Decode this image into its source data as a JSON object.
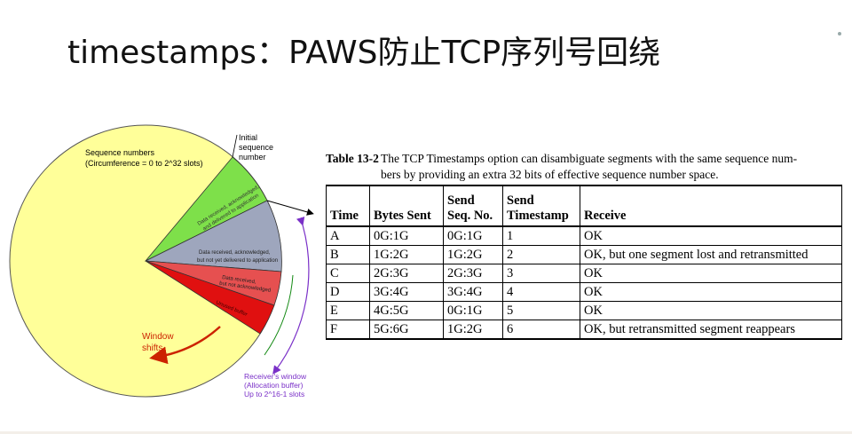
{
  "slide": {
    "title": "timestamps：PAWS防止TCP序列号回绕"
  },
  "diagram": {
    "seq_label_1": "Sequence numbers",
    "seq_label_2": "(Circumference = 0 to 2^32 slots)",
    "initial_1": "Initial",
    "initial_2": "sequence",
    "initial_3": "number",
    "green_1": "Data received, acknowledged,",
    "green_2": "and delivered to application",
    "gray_1": "Data received, acknowledged,",
    "gray_2": "but not yet delivered to application",
    "red_1": "Data received,",
    "red_2": "but not acknowledged",
    "red_3": "Unused buffer",
    "window_1": "Window",
    "window_2": "shifts",
    "recv_1": "Receiver's window",
    "recv_2": "(Allocation buffer)",
    "recv_3": "Up to 2^16-1 slots",
    "colors": {
      "circle": "#ffff99",
      "green": "#7ee04a",
      "gray": "#9ea6bd",
      "red_light": "#e65050",
      "red": "#e01010",
      "window_arrow": "#cc2200",
      "recv_arrow": "#7a30c8",
      "green_arrow": "#118811"
    }
  },
  "table": {
    "caption_num": "Table 13-2",
    "caption_line1": "The TCP Timestamps option can disambiguate segments with the same sequence num-",
    "caption_line2": "bers by providing an extra 32 bits of effective sequence number space.",
    "headers": {
      "time": "Time",
      "bytes": "Bytes Sent",
      "seq_1": "Send",
      "seq_2": "Seq. No.",
      "ts_1": "Send",
      "ts_2": "Timestamp",
      "receive": "Receive"
    },
    "rows": [
      {
        "time": "A",
        "bytes": "0G:1G",
        "seq": "0G:1G",
        "ts": "1",
        "receive": "OK"
      },
      {
        "time": "B",
        "bytes": "1G:2G",
        "seq": "1G:2G",
        "ts": "2",
        "receive": "OK, but one segment lost and retransmitted"
      },
      {
        "time": "C",
        "bytes": "2G:3G",
        "seq": "2G:3G",
        "ts": "3",
        "receive": "OK"
      },
      {
        "time": "D",
        "bytes": "3G:4G",
        "seq": "3G:4G",
        "ts": "4",
        "receive": "OK"
      },
      {
        "time": "E",
        "bytes": "4G:5G",
        "seq": "0G:1G",
        "ts": "5",
        "receive": "OK"
      },
      {
        "time": "F",
        "bytes": "5G:6G",
        "seq": "1G:2G",
        "ts": "6",
        "receive": "OK, but retransmitted segment reappears"
      }
    ]
  }
}
